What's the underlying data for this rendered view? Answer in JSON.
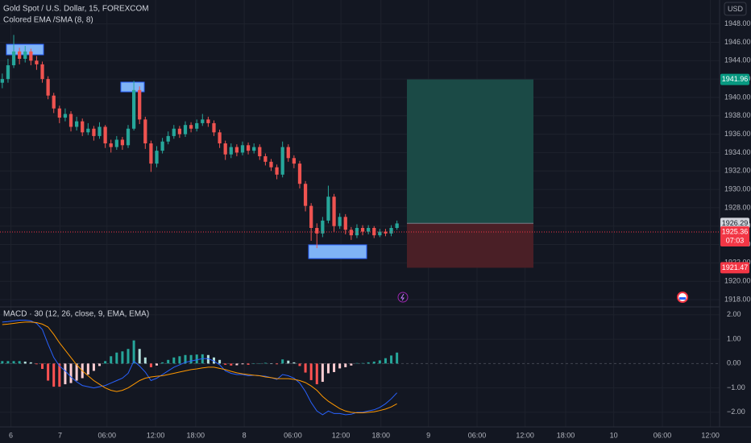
{
  "header": {
    "symbol": "Gold Spot / U.S. Dollar, 15, FOREXCOM",
    "indicator": "Colored EMA /SMA (8, 8)",
    "currency": "USD"
  },
  "chart_data": [
    {
      "type": "candlestick",
      "xlim": [
        -0.4,
        125.4
      ],
      "xticks": [
        {
          "value": 1.5,
          "label": "6"
        },
        {
          "value": 10.1,
          "label": "7"
        },
        {
          "value": 18.3,
          "label": "06:00"
        },
        {
          "value": 26.8,
          "label": "12:00"
        },
        {
          "value": 33.8,
          "label": "18:00"
        },
        {
          "value": 42.3,
          "label": "8"
        },
        {
          "value": 50.8,
          "label": "06:00"
        },
        {
          "value": 59.2,
          "label": "12:00"
        },
        {
          "value": 66.2,
          "label": "18:00"
        },
        {
          "value": 74.5,
          "label": "9"
        },
        {
          "value": 83,
          "label": "06:00"
        },
        {
          "value": 91.4,
          "label": "12:00"
        },
        {
          "value": 98.5,
          "label": "18:00"
        },
        {
          "value": 106.9,
          "label": "10"
        },
        {
          "value": 115.4,
          "label": "06:00"
        },
        {
          "value": 123.8,
          "label": "12:00"
        }
      ],
      "ylim": [
        1917.3,
        1950.6
      ],
      "yticks": [
        {
          "value": 1918,
          "label": "1918.00"
        },
        {
          "value": 1920,
          "label": "1920.00"
        },
        {
          "value": 1922,
          "label": "1922.00"
        },
        {
          "value": 1924,
          "label": "1924.00"
        },
        {
          "value": 1926,
          "label": "1926.00"
        },
        {
          "value": 1928,
          "label": "1928.00"
        },
        {
          "value": 1930,
          "label": "1930.00"
        },
        {
          "value": 1932,
          "label": "1932.00"
        },
        {
          "value": 1934,
          "label": "1934.00"
        },
        {
          "value": 1936,
          "label": "1936.00"
        },
        {
          "value": 1938,
          "label": "1938.00"
        },
        {
          "value": 1940,
          "label": "1940.00"
        },
        {
          "value": 1942,
          "label": "1942.00"
        },
        {
          "value": 1944,
          "label": "1944.00"
        },
        {
          "value": 1946,
          "label": "1946.00"
        },
        {
          "value": 1948,
          "label": "1948.00"
        }
      ],
      "grid": true,
      "up_color": "#26a69a",
      "down_color": "#ef5350",
      "open": [
        1941.6,
        1942.0,
        1943.5,
        1945.0,
        1944.2,
        1945.0,
        1944.0,
        1943.6,
        1942.0,
        1940.2,
        1938.8,
        1937.8,
        1938.2,
        1936.8,
        1937.4,
        1936.2,
        1936.6,
        1935.8,
        1936.8,
        1935.0,
        1934.6,
        1935.4,
        1934.8,
        1936.6,
        1940.8,
        1937.6,
        1935.0,
        1932.8,
        1934.2,
        1935.2,
        1935.8,
        1936.6,
        1936.0,
        1937.0,
        1936.6,
        1937.2,
        1937.6,
        1937.2,
        1936.2,
        1935.0,
        1933.8,
        1934.6,
        1934.0,
        1934.8,
        1934.2,
        1934.6,
        1933.6,
        1933.0,
        1932.4,
        1931.6,
        1934.6,
        1933.4,
        1932.8,
        1930.6,
        1928.2,
        1925.8,
        1925.2,
        1926.6,
        1929.2,
        1926.0,
        1927.0,
        1925.6,
        1925.0,
        1925.8,
        1925.4,
        1925.8,
        1925.0,
        1925.4,
        1925.2,
        1925.8
      ],
      "high": [
        1942.6,
        1944.2,
        1946.8,
        1945.4,
        1945.6,
        1945.3,
        1944.5,
        1943.9,
        1942.3,
        1940.5,
        1939.1,
        1938.8,
        1938.5,
        1937.9,
        1937.7,
        1937.2,
        1936.9,
        1937.3,
        1937.0,
        1935.4,
        1935.8,
        1935.7,
        1937.0,
        1941.8,
        1941.2,
        1937.9,
        1935.3,
        1934.7,
        1935.6,
        1936.3,
        1937.0,
        1936.9,
        1937.4,
        1937.3,
        1937.6,
        1938.2,
        1937.9,
        1937.5,
        1936.5,
        1935.3,
        1935.0,
        1934.9,
        1935.2,
        1935.1,
        1935.0,
        1934.9,
        1933.9,
        1933.3,
        1932.7,
        1935.2,
        1934.9,
        1933.7,
        1933.1,
        1930.9,
        1928.5,
        1926.3,
        1927.0,
        1930.4,
        1929.5,
        1927.4,
        1927.3,
        1925.9,
        1926.2,
        1926.1,
        1926.1,
        1926.0,
        1925.7,
        1925.7,
        1926.1,
        1926.6
      ],
      "low": [
        1941.0,
        1941.6,
        1943.2,
        1943.6,
        1943.8,
        1943.5,
        1943.0,
        1941.6,
        1939.8,
        1938.3,
        1937.2,
        1937.4,
        1936.3,
        1936.4,
        1935.8,
        1935.9,
        1935.3,
        1935.5,
        1934.5,
        1934.0,
        1934.3,
        1934.3,
        1934.5,
        1936.4,
        1937.1,
        1934.4,
        1931.9,
        1932.4,
        1933.9,
        1934.9,
        1935.5,
        1935.6,
        1935.7,
        1936.2,
        1936.3,
        1936.9,
        1936.8,
        1935.8,
        1934.5,
        1933.2,
        1933.4,
        1933.6,
        1933.7,
        1933.8,
        1933.9,
        1933.2,
        1932.6,
        1932.0,
        1931.1,
        1931.3,
        1933.0,
        1932.3,
        1930.1,
        1927.6,
        1924.4,
        1923.6,
        1924.8,
        1926.3,
        1925.4,
        1925.7,
        1925.1,
        1924.5,
        1924.7,
        1925.0,
        1925.1,
        1924.7,
        1924.8,
        1924.9,
        1924.9,
        1925.6
      ],
      "close": [
        1942.0,
        1943.5,
        1945.0,
        1944.2,
        1945.0,
        1944.0,
        1943.6,
        1942.0,
        1940.2,
        1938.8,
        1937.8,
        1938.2,
        1936.8,
        1937.4,
        1936.2,
        1936.6,
        1935.8,
        1936.8,
        1935.0,
        1934.6,
        1935.4,
        1934.8,
        1936.6,
        1940.8,
        1937.6,
        1935.0,
        1932.8,
        1934.2,
        1935.2,
        1935.8,
        1936.6,
        1936.0,
        1937.0,
        1936.6,
        1937.2,
        1937.6,
        1937.2,
        1936.2,
        1935.0,
        1933.8,
        1934.6,
        1934.0,
        1934.8,
        1934.2,
        1934.6,
        1933.6,
        1933.0,
        1932.4,
        1931.6,
        1934.6,
        1933.4,
        1932.8,
        1930.6,
        1928.2,
        1925.8,
        1925.2,
        1926.6,
        1929.2,
        1926.0,
        1927.0,
        1925.6,
        1925.0,
        1925.8,
        1925.4,
        1925.8,
        1925.0,
        1925.4,
        1925.2,
        1925.8,
        1926.29
      ],
      "position": {
        "target": 1941.96,
        "entry": 1926.3,
        "stop": 1921.47
      },
      "price_tags": [
        {
          "value": 1941.96,
          "color": "#089981",
          "text_color": "#ffffff"
        },
        {
          "value": 1926.29,
          "color": "#d1d4dc",
          "text_color": "#131722"
        },
        {
          "value": 1925.36,
          "color": "#f23645",
          "text_color": "#ffffff",
          "countdown": "07:03"
        },
        {
          "value": 1921.47,
          "color": "#f23645",
          "text_color": "#ffffff"
        }
      ]
    },
    {
      "type": "macd",
      "title": "MACD · 30 (12, 26, close, 9, EMA, EMA)",
      "xlim": [
        -0.4,
        125.4
      ],
      "ylim": [
        -2.6,
        2.26
      ],
      "yticks": [
        {
          "value": 2,
          "label": "2.00"
        },
        {
          "value": 1,
          "label": "1.00"
        },
        {
          "value": 0,
          "label": "0.00"
        },
        {
          "value": -1,
          "label": "−1.00"
        },
        {
          "value": -2,
          "label": "−2.00"
        }
      ],
      "series": [
        {
          "color": "#2962ff",
          "values": [
            1.7,
            1.72,
            1.75,
            1.78,
            1.78,
            1.75,
            1.65,
            1.4,
            0.8,
            0.25,
            -0.1,
            -0.3,
            -0.55,
            -0.75,
            -0.9,
            -0.95,
            -1.0,
            -0.95,
            -0.9,
            -0.8,
            -0.7,
            -0.6,
            -0.4,
            0.1,
            -0.1,
            -0.35,
            -0.7,
            -0.6,
            -0.45,
            -0.3,
            -0.15,
            -0.05,
            0.05,
            0.1,
            0.15,
            0.2,
            0.2,
            0.1,
            -0.05,
            -0.3,
            -0.4,
            -0.45,
            -0.45,
            -0.5,
            -0.48,
            -0.5,
            -0.52,
            -0.58,
            -0.65,
            -0.45,
            -0.5,
            -0.6,
            -0.8,
            -1.15,
            -1.6,
            -1.95,
            -2.1,
            -1.95,
            -2.05,
            -2.05,
            -2.1,
            -2.08,
            -2.0,
            -2.0,
            -1.95,
            -1.9,
            -1.8,
            -1.65,
            -1.45,
            -1.2
          ]
        },
        {
          "color": "#ff9800",
          "values": [
            1.6,
            1.62,
            1.65,
            1.68,
            1.7,
            1.7,
            1.68,
            1.62,
            1.5,
            1.2,
            0.85,
            0.55,
            0.25,
            -0.05,
            -0.3,
            -0.5,
            -0.7,
            -0.85,
            -1.0,
            -1.1,
            -1.15,
            -1.1,
            -1.0,
            -0.85,
            -0.7,
            -0.6,
            -0.55,
            -0.52,
            -0.5,
            -0.45,
            -0.4,
            -0.35,
            -0.3,
            -0.25,
            -0.22,
            -0.18,
            -0.15,
            -0.15,
            -0.2,
            -0.25,
            -0.32,
            -0.38,
            -0.42,
            -0.45,
            -0.48,
            -0.5,
            -0.55,
            -0.58,
            -0.62,
            -0.62,
            -0.62,
            -0.65,
            -0.7,
            -0.78,
            -0.92,
            -1.1,
            -1.35,
            -1.55,
            -1.7,
            -1.85,
            -1.95,
            -2.0,
            -2.02,
            -2.02,
            -2.0,
            -1.98,
            -1.93,
            -1.87,
            -1.78,
            -1.65
          ]
        }
      ],
      "histogram": [
        0.1,
        0.1,
        0.1,
        0.1,
        0.08,
        0.05,
        -0.03,
        -0.22,
        -0.7,
        -0.95,
        -0.95,
        -0.85,
        -0.8,
        -0.7,
        -0.6,
        -0.45,
        -0.3,
        -0.1,
        0.1,
        0.3,
        0.45,
        0.5,
        0.6,
        0.95,
        0.6,
        0.25,
        -0.15,
        -0.08,
        0.05,
        0.15,
        0.25,
        0.3,
        0.35,
        0.35,
        0.37,
        0.38,
        0.35,
        0.25,
        0.15,
        -0.05,
        -0.08,
        -0.07,
        -0.03,
        -0.05,
        0.0,
        0.0,
        0.03,
        0.0,
        -0.03,
        0.17,
        0.12,
        0.05,
        -0.1,
        -0.37,
        -0.68,
        -0.85,
        -0.75,
        -0.4,
        -0.35,
        -0.2,
        -0.15,
        -0.08,
        0.02,
        0.02,
        0.05,
        0.08,
        0.13,
        0.22,
        0.33,
        0.45
      ]
    }
  ]
}
